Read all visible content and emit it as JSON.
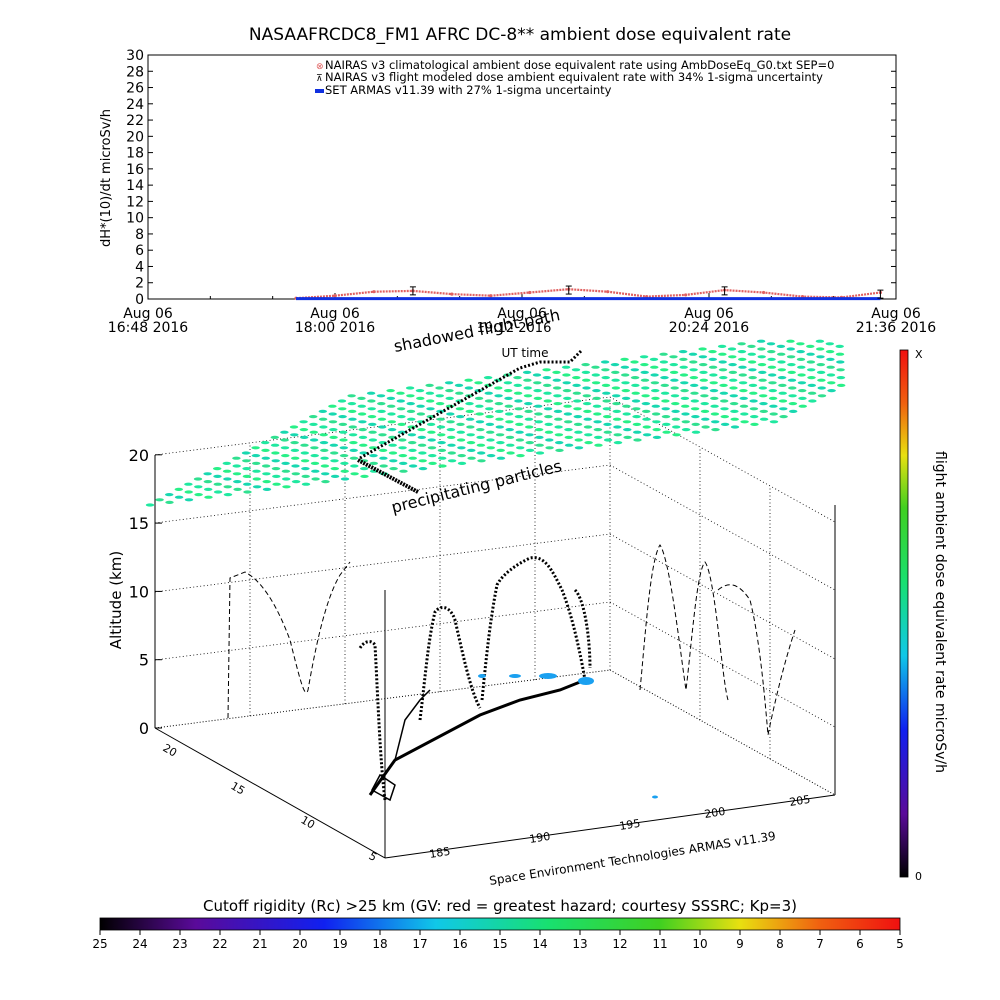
{
  "chart_data": [
    {
      "type": "line",
      "title": "NASAAFRCDC8_FM1 AFRC DC-8** ambient dose equivalent rate",
      "ylabel": "dH*(10)/dt microSv/h",
      "xlabel": "UT time",
      "ylim": [
        0,
        30
      ],
      "y_ticks": [
        "0",
        "2",
        "4",
        "6",
        "8",
        "10",
        "12",
        "14",
        "16",
        "18",
        "20",
        "22",
        "24",
        "26",
        "28",
        "30"
      ],
      "x_ticks": [
        {
          "date": "Aug 06",
          "time": "16:48 2016"
        },
        {
          "date": "Aug 06",
          "time": "18:00 2016"
        },
        {
          "date": "Aug 06",
          "time": "19:12 2016"
        },
        {
          "date": "Aug 06",
          "time": "20:24 2016"
        },
        {
          "date": "Aug 06",
          "time": "21:36 2016"
        }
      ],
      "legend": [
        "NAIRAS v3 climatological ambient dose equivalent rate using AmbDoseEq_G0.txt SEP=0",
        "NAIRAS v3 flight modeled dose ambient equivalent rate with 34% 1-sigma uncertainty",
        "SET ARMAS v11.39 with 27% 1-sigma uncertainty"
      ],
      "legend_placement": "top-right",
      "colors": {
        "nairas_climatological": "#e06060",
        "nairas_flight": "#000000",
        "armas": "#1030e0"
      },
      "x_hours": [
        17.75,
        18.0,
        18.25,
        18.5,
        18.75,
        19.0,
        19.25,
        19.5,
        19.75,
        20.0,
        20.25,
        20.5,
        20.75,
        21.0,
        21.25,
        21.5
      ],
      "series": [
        {
          "name": "NAIRAS v3 climatological ambient dose equivalent rate using AmbDoseEq_G0.txt SEP=0",
          "values": [
            0.1,
            0.4,
            0.9,
            1.0,
            0.6,
            0.4,
            0.8,
            1.2,
            0.9,
            0.3,
            0.5,
            1.1,
            0.8,
            0.3,
            0.2,
            0.8
          ]
        },
        {
          "name": "NAIRAS v3 flight modeled dose ambient equivalent rate with 34% 1-sigma uncertainty",
          "values": [
            0.0,
            0.0,
            0.0,
            1.0,
            0.0,
            0.0,
            0.0,
            1.1,
            0.0,
            0.0,
            0.0,
            1.0,
            0.0,
            0.0,
            0.0,
            0.6
          ]
        },
        {
          "name": "SET ARMAS v11.39 with 27% 1-sigma uncertainty",
          "values": [
            0.05,
            0.05,
            0.05,
            0.05,
            0.05,
            0.05,
            0.05,
            0.05,
            0.05,
            0.05,
            0.05,
            0.05,
            0.05,
            0.05,
            0.05,
            0.05
          ]
        }
      ]
    },
    {
      "type": "scatter",
      "zlabel": "Altitude (km)",
      "z_ticks": [
        "0",
        "5",
        "10",
        "15",
        "20"
      ],
      "y_ticks": [
        "5",
        "10",
        "15",
        "20"
      ],
      "x_ticks": [
        "185",
        "190",
        "195",
        "200",
        "205"
      ],
      "annotations": [
        "shadowed flight path",
        "precipitating particles"
      ],
      "credit": "Space Environment Technologies ARMAS v11.39",
      "shadow_label_overlap": "19:12 2016"
    }
  ],
  "colorbar_right": {
    "label": "flight ambient dose equivalent rate microSv/h",
    "top_label": "X",
    "bottom_label": "0"
  },
  "colorbar_bottom": {
    "label": "Cutoff rigidity (Rc) >25 km (GV: red = greatest hazard; courtesy SSSRC; Kp=3)",
    "ticks": [
      "25",
      "24",
      "23",
      "22",
      "21",
      "20",
      "19",
      "18",
      "17",
      "16",
      "15",
      "14",
      "13",
      "12",
      "11",
      "10",
      "9",
      "8",
      "7",
      "6",
      "5"
    ]
  }
}
